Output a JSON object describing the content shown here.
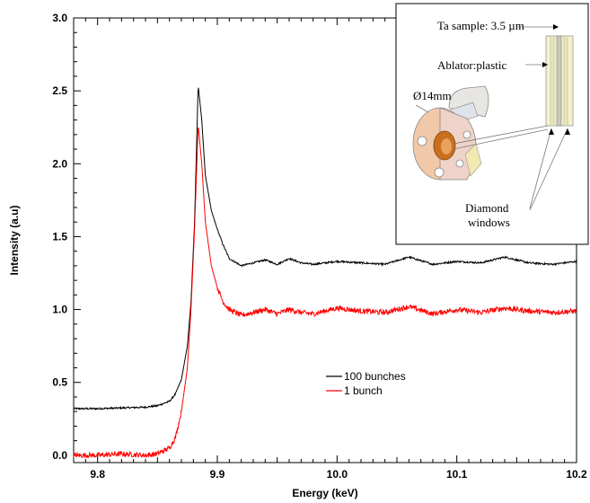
{
  "chart_data": {
    "type": "line",
    "xlabel": "Energy (keV)",
    "ylabel": "Intensity (a.u)",
    "xlim": [
      9.78,
      10.2
    ],
    "ylim": [
      -0.05,
      3.0
    ],
    "x_ticks": [
      9.8,
      9.9,
      10.0,
      10.1,
      10.2
    ],
    "x_tick_labels": [
      "9.8",
      "9.9",
      "10.0",
      "10.1",
      "10.2"
    ],
    "y_ticks": [
      0.0,
      0.5,
      1.0,
      1.5,
      2.0,
      2.5,
      3.0
    ],
    "y_tick_labels": [
      "0.0",
      "0.5",
      "1.0",
      "1.5",
      "2.0",
      "2.5",
      "3.0"
    ],
    "grid": false,
    "legend_position": "bottom-center",
    "series": [
      {
        "name": "100 bunches",
        "color": "#000000",
        "x": [
          9.78,
          9.8,
          9.82,
          9.84,
          9.85,
          9.86,
          9.865,
          9.87,
          9.875,
          9.878,
          9.881,
          9.884,
          9.887,
          9.89,
          9.895,
          9.9,
          9.905,
          9.91,
          9.92,
          9.93,
          9.94,
          9.95,
          9.96,
          9.97,
          9.98,
          10.0,
          10.02,
          10.04,
          10.06,
          10.08,
          10.1,
          10.12,
          10.14,
          10.16,
          10.18,
          10.2
        ],
        "y": [
          0.32,
          0.32,
          0.325,
          0.33,
          0.34,
          0.37,
          0.42,
          0.52,
          0.75,
          1.05,
          1.6,
          2.54,
          2.3,
          1.92,
          1.68,
          1.55,
          1.44,
          1.35,
          1.3,
          1.32,
          1.34,
          1.31,
          1.35,
          1.32,
          1.31,
          1.33,
          1.32,
          1.31,
          1.36,
          1.31,
          1.33,
          1.32,
          1.36,
          1.32,
          1.31,
          1.33
        ]
      },
      {
        "name": "1 bunch",
        "color": "#ff0000",
        "x": [
          9.78,
          9.8,
          9.82,
          9.84,
          9.85,
          9.86,
          9.865,
          9.87,
          9.875,
          9.878,
          9.881,
          9.884,
          9.887,
          9.89,
          9.895,
          9.9,
          9.905,
          9.91,
          9.92,
          9.93,
          9.94,
          9.95,
          9.96,
          9.97,
          9.98,
          10.0,
          10.02,
          10.04,
          10.06,
          10.08,
          10.1,
          10.12,
          10.14,
          10.16,
          10.18,
          10.2
        ],
        "y": [
          0.0,
          0.0,
          0.01,
          0.0,
          0.01,
          0.05,
          0.12,
          0.3,
          0.6,
          1.0,
          1.55,
          2.27,
          2.0,
          1.6,
          1.3,
          1.15,
          1.05,
          1.0,
          0.96,
          0.98,
          1.0,
          0.97,
          1.0,
          0.98,
          0.97,
          1.01,
          0.99,
          0.98,
          1.02,
          0.97,
          1.0,
          0.98,
          1.01,
          0.99,
          0.98,
          0.99
        ]
      }
    ],
    "inset": {
      "labels": {
        "ta_sample": "Ta sample: 3.5 µm",
        "ablator": "Ablator:plastic",
        "diameter": "Ø14mm",
        "diamond_line1": "Diamond",
        "diamond_line2": "windows"
      }
    }
  }
}
